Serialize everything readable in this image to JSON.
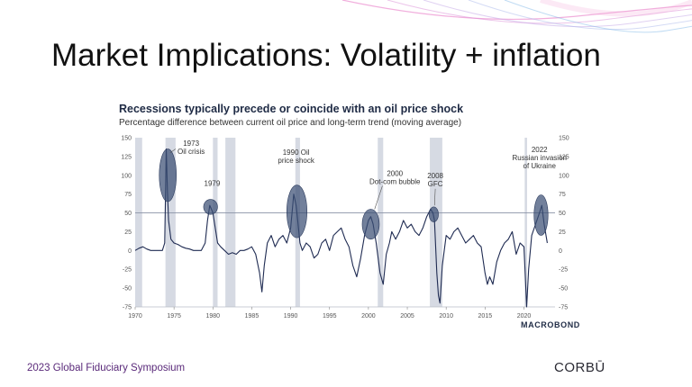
{
  "slide": {
    "title": "Market Implications: Volatility + inflation",
    "footer_text": "2023 Global Fiduciary Symposium",
    "footer_logo": "CORBŪ",
    "accent_colors": [
      "#e879c7",
      "#c2a3e6",
      "#7fb8e8"
    ]
  },
  "chart_data": {
    "type": "line",
    "title": "Recessions typically precede or coincide with an oil price shock",
    "subtitle": "Percentage difference between current oil price and long-term trend (moving average)",
    "source_logo": "MACROBOND",
    "line_color": "#1f2b52",
    "shade_color": "#d6dae3",
    "highlight_color": "#3c4f74",
    "xlim": [
      1970,
      2024
    ],
    "ylim": [
      -75,
      150
    ],
    "x_ticks": [
      1970,
      1975,
      1980,
      1985,
      1990,
      1995,
      2000,
      2005,
      2010,
      2015,
      2020
    ],
    "y_ticks": [
      150,
      125,
      100,
      75,
      50,
      25,
      0,
      -25,
      -50,
      -75
    ],
    "reference_line": 50,
    "recessions": [
      [
        1970.0,
        1970.9
      ],
      [
        1973.9,
        1975.2
      ],
      [
        1980.0,
        1980.6
      ],
      [
        1981.6,
        1982.9
      ],
      [
        1990.6,
        1991.2
      ],
      [
        2001.2,
        2001.9
      ],
      [
        2007.9,
        2009.5
      ],
      [
        2020.1,
        2020.4
      ]
    ],
    "annotations": [
      {
        "lines": [
          "1973",
          "Oil crisis"
        ],
        "x": 1974.2,
        "y": 100,
        "rx": 1.1,
        "ry": 35
      },
      {
        "lines": [
          "1979"
        ],
        "x": 1979.7,
        "y": 58,
        "rx": 0.9,
        "ry": 10
      },
      {
        "lines": [
          "1990 Oil",
          "price shock"
        ],
        "x": 1990.8,
        "y": 52,
        "rx": 1.3,
        "ry": 35
      },
      {
        "lines": [
          "2000",
          "Dot-com bubble"
        ],
        "x": 2000.3,
        "y": 35,
        "rx": 1.1,
        "ry": 20
      },
      {
        "lines": [
          "2008",
          "GFC"
        ],
        "x": 2008.4,
        "y": 48,
        "rx": 0.6,
        "ry": 10
      },
      {
        "lines": [
          "2022",
          "Russian invasion",
          "of Ukraine"
        ],
        "x": 2022.2,
        "y": 47,
        "rx": 0.9,
        "ry": 27
      }
    ],
    "series": [
      {
        "x": [
          1970.0,
          1970.5,
          1971.0,
          1971.5,
          1972.0,
          1972.5,
          1973.0,
          1973.5,
          1973.8,
          1974.0,
          1974.15,
          1974.3,
          1974.6,
          1975.0,
          1975.5,
          1976.0,
          1976.5,
          1977.0,
          1977.5,
          1978.0,
          1978.5,
          1979.0,
          1979.3,
          1979.6,
          1979.8,
          1980.0,
          1980.3,
          1980.6,
          1981.0,
          1981.5,
          1982.0,
          1982.5,
          1983.0,
          1983.5,
          1984.0,
          1984.5,
          1985.0,
          1985.5,
          1986.0,
          1986.3,
          1986.6,
          1987.0,
          1987.5,
          1988.0,
          1988.5,
          1989.0,
          1989.5,
          1990.0,
          1990.4,
          1990.7,
          1990.9,
          1991.2,
          1991.5,
          1992.0,
          1992.5,
          1993.0,
          1993.5,
          1994.0,
          1994.5,
          1995.0,
          1995.5,
          1996.0,
          1996.5,
          1997.0,
          1997.5,
          1998.0,
          1998.5,
          1999.0,
          1999.5,
          2000.0,
          2000.3,
          2000.6,
          2001.0,
          2001.5,
          2001.9,
          2002.3,
          2002.7,
          2003.0,
          2003.5,
          2004.0,
          2004.5,
          2005.0,
          2005.5,
          2006.0,
          2006.5,
          2007.0,
          2007.5,
          2008.0,
          2008.3,
          2008.5,
          2008.8,
          2009.0,
          2009.2,
          2009.5,
          2010.0,
          2010.5,
          2011.0,
          2011.5,
          2012.0,
          2012.5,
          2013.0,
          2013.5,
          2014.0,
          2014.5,
          2015.0,
          2015.3,
          2015.6,
          2016.0,
          2016.5,
          2017.0,
          2017.5,
          2018.0,
          2018.5,
          2019.0,
          2019.5,
          2020.0,
          2020.2,
          2020.35,
          2020.6,
          2021.0,
          2021.5,
          2022.0,
          2022.3,
          2022.6,
          2023.0
        ],
        "y": [
          0,
          3,
          5,
          2,
          0,
          0,
          0,
          0,
          10,
          135,
          80,
          40,
          15,
          10,
          8,
          5,
          3,
          2,
          0,
          0,
          0,
          10,
          40,
          60,
          55,
          50,
          30,
          10,
          5,
          0,
          -5,
          -3,
          -5,
          0,
          0,
          2,
          5,
          -5,
          -30,
          -55,
          -20,
          10,
          20,
          5,
          15,
          20,
          10,
          30,
          75,
          60,
          40,
          10,
          0,
          10,
          5,
          -10,
          -5,
          10,
          15,
          0,
          20,
          25,
          30,
          15,
          5,
          -20,
          -35,
          -10,
          20,
          40,
          45,
          35,
          10,
          -30,
          -45,
          -5,
          10,
          25,
          15,
          25,
          40,
          30,
          35,
          25,
          20,
          30,
          45,
          55,
          50,
          40,
          -30,
          -60,
          -70,
          -20,
          20,
          15,
          25,
          30,
          20,
          10,
          15,
          20,
          10,
          5,
          -30,
          -45,
          -35,
          -45,
          -15,
          0,
          10,
          15,
          25,
          -5,
          10,
          5,
          -40,
          -75,
          -25,
          20,
          35,
          50,
          60,
          35,
          10
        ]
      }
    ]
  }
}
